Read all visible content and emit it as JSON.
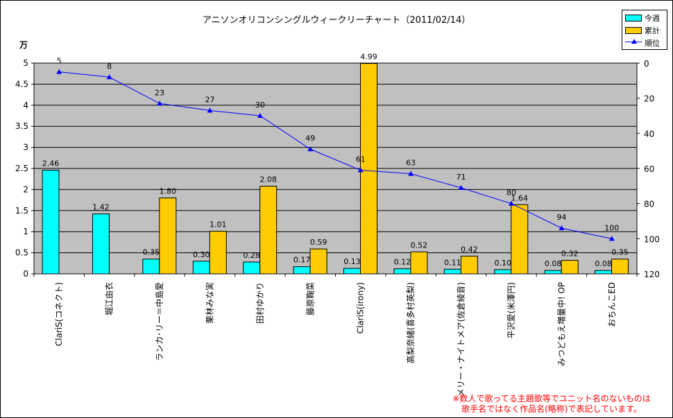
{
  "chart_data": {
    "type": "bar",
    "title": "アニソンオリコンシングルウィークリーチャート（2011/02/14）",
    "y_unit": "万",
    "categories": [
      "ClariS(コネクト)",
      "堀江由衣",
      "ランカ･リー＝中島愛",
      "栗林みな実",
      "田村ゆかり",
      "藤原鞠菜",
      "ClariS(irony)",
      "高梨奈緒(喜多村英梨)",
      "メリー・ナイトメア(佐倉綾音)",
      "平沢愛(米澤円)",
      "みつどもえ増量中! OP",
      "おちんこED"
    ],
    "series": [
      {
        "name": "今週",
        "color": "#00ffff",
        "values": [
          2.46,
          1.42,
          0.35,
          0.3,
          0.28,
          0.17,
          0.13,
          0.12,
          0.11,
          0.1,
          0.08,
          0.08
        ],
        "labels": [
          "2.46",
          "1.42",
          "0.35",
          "0.30",
          "0.28",
          "0.17",
          "0.13",
          "0.12",
          "0.11",
          "0.10",
          "0.08",
          "0.08"
        ]
      },
      {
        "name": "累計",
        "color": "#ffcc00",
        "values": [
          null,
          null,
          1.8,
          1.01,
          2.08,
          0.59,
          4.99,
          0.52,
          0.42,
          1.64,
          0.32,
          0.35
        ],
        "labels": [
          "",
          "",
          "1.80",
          "1.01",
          "2.08",
          "0.59",
          "4.99",
          "0.52",
          "0.42",
          "1.64",
          "0.32",
          "0.35"
        ]
      },
      {
        "name": "順位",
        "color": "#0000ff",
        "type": "line",
        "axis": "right",
        "values": [
          5,
          8,
          23,
          27,
          30,
          49,
          61,
          63,
          71,
          80,
          94,
          100
        ],
        "labels": [
          "5",
          "8",
          "23",
          "27",
          "30",
          "49",
          "61",
          "63",
          "71",
          "80",
          "94",
          "100"
        ]
      }
    ],
    "y_left": {
      "min": 0,
      "max": 5,
      "ticks": [
        "0",
        "0.5",
        "1",
        "1.5",
        "2",
        "2.5",
        "3",
        "3.5",
        "4",
        "4.5",
        "5"
      ]
    },
    "y_right": {
      "min": 0,
      "max": 120,
      "reversed": true,
      "ticks": [
        "0",
        "20",
        "40",
        "60",
        "80",
        "100",
        "120"
      ]
    },
    "grid": true,
    "legend_position": "top-right",
    "plot_background": "#c0c0c0"
  },
  "note": {
    "line1": "※数人で歌ってる主題歌等でユニット名のないものは",
    "line2": "歌手名ではなく作品名(略称)で表記しています。"
  }
}
